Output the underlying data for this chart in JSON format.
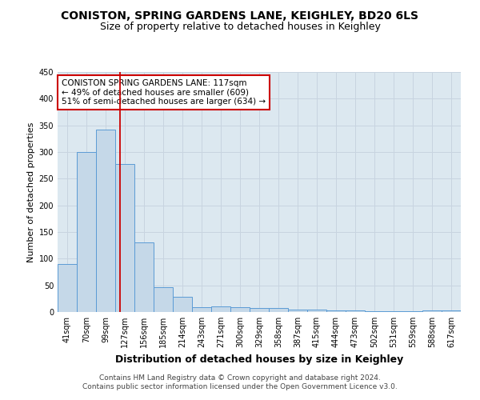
{
  "title1": "CONISTON, SPRING GARDENS LANE, KEIGHLEY, BD20 6LS",
  "title2": "Size of property relative to detached houses in Keighley",
  "xlabel": "Distribution of detached houses by size in Keighley",
  "ylabel": "Number of detached properties",
  "categories": [
    "41sqm",
    "70sqm",
    "99sqm",
    "127sqm",
    "156sqm",
    "185sqm",
    "214sqm",
    "243sqm",
    "271sqm",
    "300sqm",
    "329sqm",
    "358sqm",
    "387sqm",
    "415sqm",
    "444sqm",
    "473sqm",
    "502sqm",
    "531sqm",
    "559sqm",
    "588sqm",
    "617sqm"
  ],
  "values": [
    90,
    300,
    342,
    278,
    131,
    46,
    29,
    9,
    11,
    9,
    8,
    8,
    4,
    4,
    3,
    3,
    2,
    2,
    1,
    3,
    3
  ],
  "bar_color": "#c5d8e8",
  "bar_edge_color": "#5b9bd5",
  "bar_edge_width": 0.7,
  "vline_x": 2.75,
  "vline_color": "#cc0000",
  "ylim": [
    0,
    450
  ],
  "yticks": [
    0,
    50,
    100,
    150,
    200,
    250,
    300,
    350,
    400,
    450
  ],
  "annotation_title": "CONISTON SPRING GARDENS LANE: 117sqm",
  "annotation_line2": "← 49% of detached houses are smaller (609)",
  "annotation_line3": "51% of semi-detached houses are larger (634) →",
  "annotation_box_color": "#cc0000",
  "annotation_text_color": "#000000",
  "annotation_bg": "#ffffff",
  "footer1": "Contains HM Land Registry data © Crown copyright and database right 2024.",
  "footer2": "Contains public sector information licensed under the Open Government Licence v3.0.",
  "grid_color": "#c8d4e0",
  "title1_fontsize": 10,
  "title2_fontsize": 9,
  "xlabel_fontsize": 9,
  "ylabel_fontsize": 8,
  "tick_fontsize": 7,
  "annotation_fontsize": 7.5,
  "footer_fontsize": 6.5
}
